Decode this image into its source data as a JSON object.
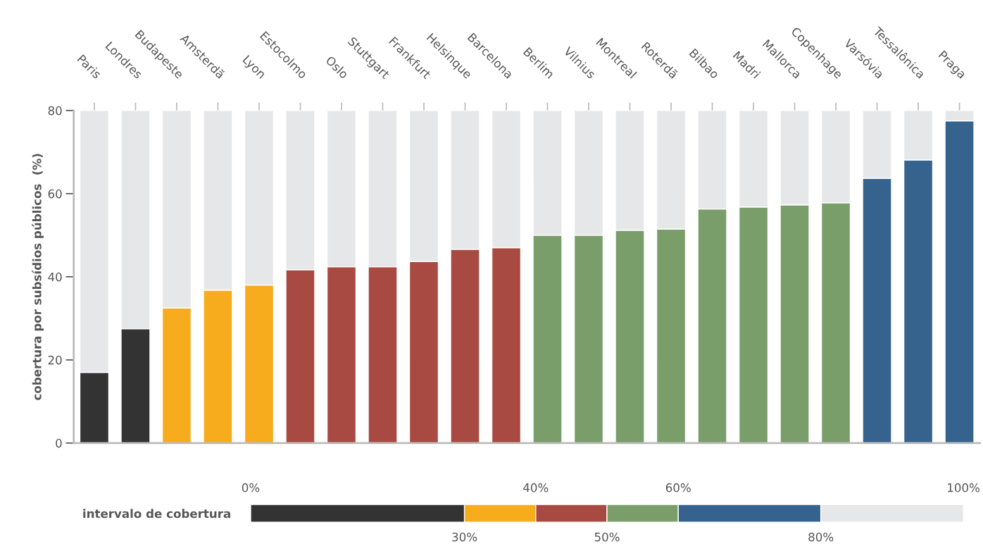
{
  "chart_data": [
    {
      "type": "bar",
      "stacked": true,
      "ylabel": "cobertura por subsídios públicos  (%)",
      "categories": [
        "Paris",
        "Londres",
        "Budapeste",
        "Amsterdã",
        "Lyon",
        "Estocolmo",
        "Oslo",
        "Stuttgart",
        "Frankfurt",
        "Helsinque",
        "Barcelona",
        "Berlim",
        "Vilnius",
        "Montreal",
        "Roterdã",
        "Bilbao",
        "Madri",
        "Mallorca",
        "Copenhage",
        "Varsóvia",
        "Tessalônica",
        "Praga"
      ],
      "series": [
        {
          "colors": [
            "#333333",
            "#333333",
            "#f7ac1e",
            "#f7ac1e",
            "#f7ac1e",
            "#a84a41",
            "#a84a41",
            "#a84a41",
            "#a84a41",
            "#a84a41",
            "#a84a41",
            "#7a9e6a",
            "#7a9e6a",
            "#7a9e6a",
            "#7a9e6a",
            "#7a9e6a",
            "#7a9e6a",
            "#7a9e6a",
            "#7a9e6a",
            "#36638e",
            "#36638e",
            "#36638e"
          ],
          "values": [
            17,
            27.5,
            32.5,
            36.8,
            38,
            41.7,
            42.4,
            42.4,
            43.7,
            46.6,
            47,
            50,
            50,
            51.2,
            51.5,
            56.3,
            56.8,
            57.3,
            57.8,
            63.7,
            68.1,
            77.5
          ]
        },
        {
          "color": "#e6e7e8",
          "values": [
            63,
            52.5,
            47.5,
            43.2,
            42,
            38.3,
            37.6,
            37.6,
            36.3,
            33.4,
            33,
            30,
            30,
            28.8,
            28.5,
            23.7,
            23.2,
            22.7,
            22.2,
            16.3,
            11.9,
            2.5
          ]
        }
      ],
      "ylim": [
        0,
        80
      ],
      "yticks": [
        0,
        20,
        40,
        60,
        80
      ],
      "grid": false,
      "legend": false
    },
    {
      "type": "bar",
      "orientation": "horizontal",
      "stacked": true,
      "categories": [
        "intervalo de cobertura"
      ],
      "series": [
        {
          "color": "#333333",
          "values": [
            30
          ]
        },
        {
          "color": "#f7ac1e",
          "values": [
            10
          ]
        },
        {
          "color": "#a84a41",
          "values": [
            10
          ]
        },
        {
          "color": "#7a9e6a",
          "values": [
            10
          ]
        },
        {
          "color": "#36638e",
          "values": [
            20
          ]
        },
        {
          "color": "#e6e7e8",
          "values": [
            20
          ]
        }
      ],
      "xlim": [
        0,
        100
      ],
      "xticks": [
        {
          "value": 30,
          "label": "30%"
        },
        {
          "value": 50,
          "label": "50%"
        },
        {
          "value": 80,
          "label": "80%"
        }
      ],
      "x2lim": [
        0,
        100
      ],
      "x2ticks": [
        {
          "value": 0,
          "label": "0%"
        },
        {
          "value": 40,
          "label": "40%"
        },
        {
          "value": 60,
          "label": "60%"
        },
        {
          "value": 100,
          "label": "100%"
        }
      ],
      "grid": false,
      "legend": false
    }
  ]
}
